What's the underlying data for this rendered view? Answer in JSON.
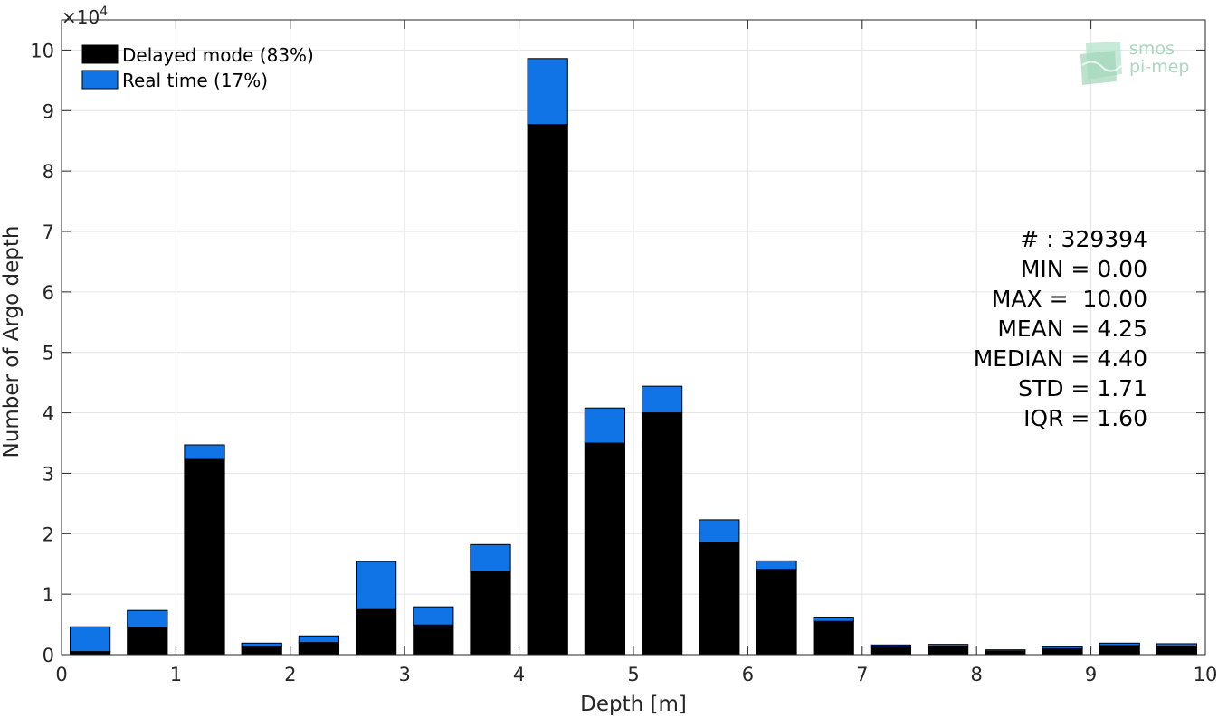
{
  "chart_data": {
    "type": "bar",
    "stacked": true,
    "xlabel": "Depth [m]",
    "ylabel": "Number of Argo depth",
    "y_multiplier_label": "×10",
    "y_multiplier_exp": "4",
    "xlim": [
      0,
      10
    ],
    "ylim": [
      0,
      10.5
    ],
    "x_ticks": [
      "0",
      "1",
      "2",
      "3",
      "4",
      "5",
      "6",
      "7",
      "8",
      "9",
      "10"
    ],
    "y_ticks": [
      "0",
      "1",
      "2",
      "3",
      "4",
      "5",
      "6",
      "7",
      "8",
      "9",
      "10"
    ],
    "grid": true,
    "legend_position": "top-left",
    "x": [
      0.25,
      0.75,
      1.25,
      1.75,
      2.25,
      2.75,
      3.25,
      3.75,
      4.25,
      4.75,
      5.25,
      5.75,
      6.25,
      6.75,
      7.25,
      7.75,
      8.25,
      8.75,
      9.25,
      9.75
    ],
    "series": [
      {
        "name": "Delayed mode (83%)",
        "color": "#000000",
        "values": [
          0.05,
          0.45,
          3.23,
          0.13,
          0.2,
          0.76,
          0.49,
          1.37,
          8.77,
          3.5,
          4.0,
          1.85,
          1.41,
          0.55,
          0.13,
          0.14,
          0.06,
          0.1,
          0.15,
          0.14
        ]
      },
      {
        "name": "Real time (17%)",
        "color": "#1174e6",
        "values": [
          0.41,
          0.28,
          0.24,
          0.06,
          0.11,
          0.78,
          0.3,
          0.45,
          1.09,
          0.58,
          0.44,
          0.38,
          0.14,
          0.07,
          0.03,
          0.03,
          0.02,
          0.03,
          0.04,
          0.04
        ]
      }
    ],
    "annotations": [
      "# : 329394",
      "MIN = 0.00",
      "MAX =  10.00",
      "MEAN = 4.25",
      "MEDIAN = 4.40",
      "STD = 1.71",
      "IQR = 1.60"
    ]
  },
  "logo": {
    "line1": "smos",
    "line2": "pi-mep",
    "color": "#a8d8bf"
  }
}
